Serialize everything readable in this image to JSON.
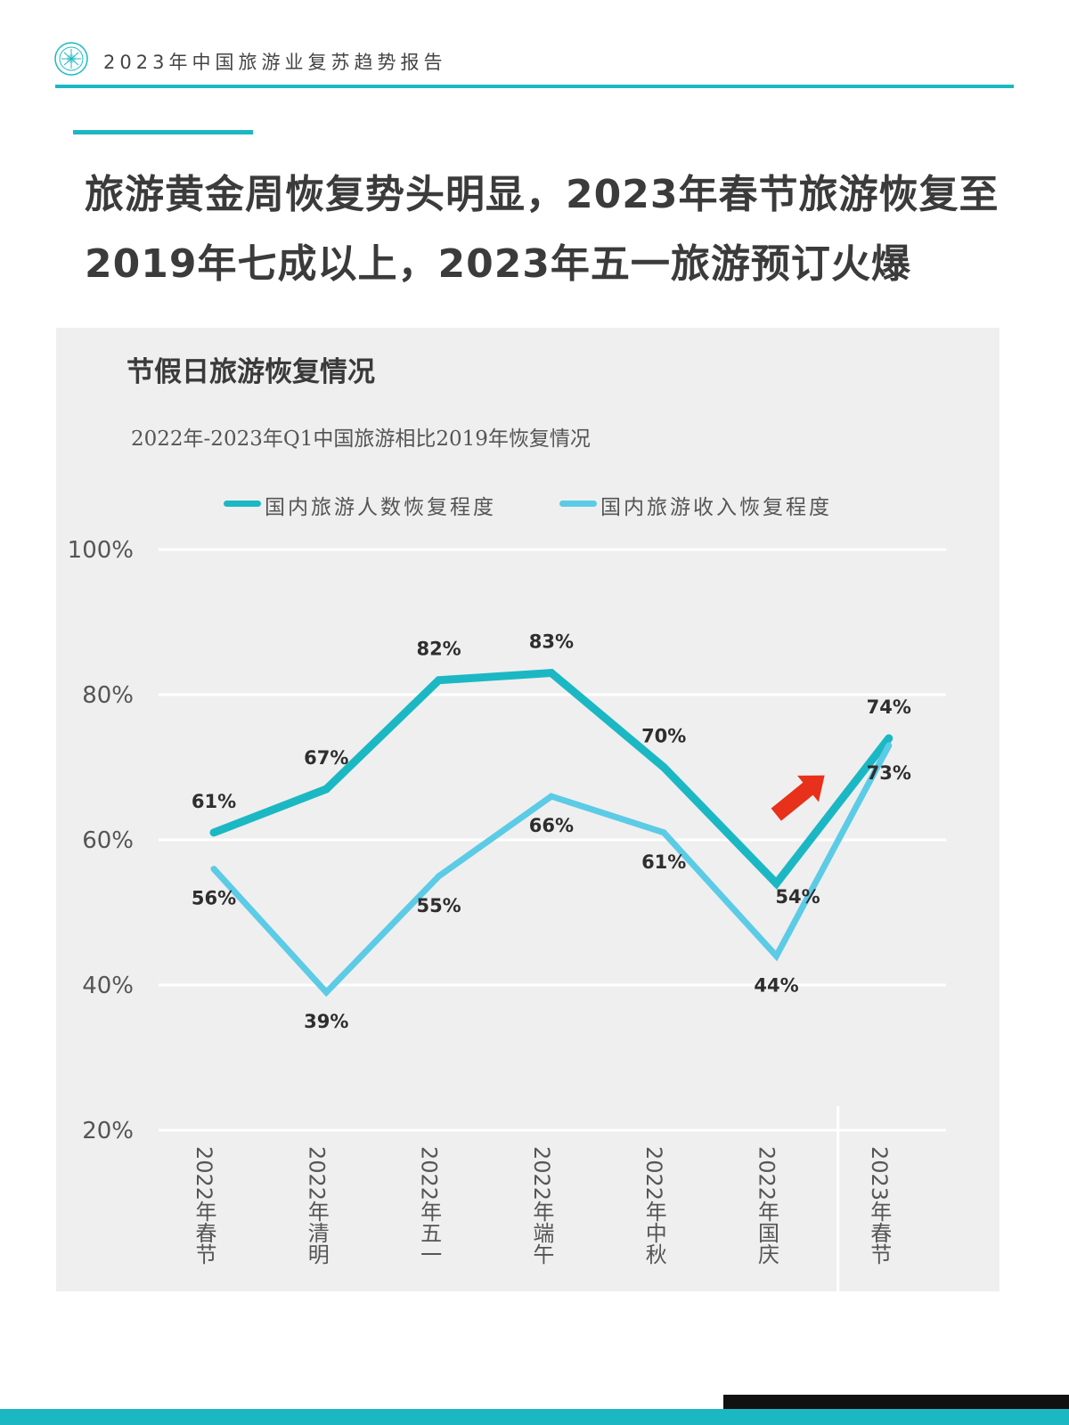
{
  "header": {
    "report_title": "2023年中国旅游业复苏趋势报告"
  },
  "headline": {
    "line1": "旅游黄金周恢复势头明显，2023年春节旅游恢复至",
    "line2": "2019年七成以上，2023年五一旅游预订火爆"
  },
  "panel": {
    "title": "节假日旅游恢复情况"
  },
  "colors": {
    "series_a": "#1bb8c4",
    "series_b": "#5ccbe6",
    "arrow": "#e8311a",
    "grid": "#ffffff",
    "panel_bg": "#efefef"
  },
  "chart_data": {
    "type": "line",
    "title": "2022年-2023年Q1中国旅游相比2019年恢复情况",
    "categories": [
      "2022年春节",
      "2022年清明",
      "2022年五一",
      "2022年端午",
      "2022年中秋",
      "2022年国庆",
      "2023年春节"
    ],
    "series": [
      {
        "name": "国内旅游人数恢复程度",
        "values": [
          61,
          67,
          82,
          83,
          70,
          54,
          74
        ],
        "labels": [
          "61%",
          "67%",
          "82%",
          "83%",
          "70%",
          "54%",
          "74%"
        ]
      },
      {
        "name": "国内旅游收入恢复程度",
        "values": [
          56,
          39,
          55,
          66,
          61,
          44,
          73
        ],
        "labels": [
          "56%",
          "39%",
          "55%",
          "66%",
          "61%",
          "44%",
          "73%"
        ]
      }
    ],
    "ylim": [
      20,
      100
    ],
    "yticks": [
      20,
      40,
      60,
      80,
      100
    ],
    "ytick_labels": [
      "20%",
      "40%",
      "60%",
      "80%",
      "100%"
    ],
    "grid": true,
    "legend_position": "top",
    "annotation": "red upward arrow before 2023年春节"
  }
}
